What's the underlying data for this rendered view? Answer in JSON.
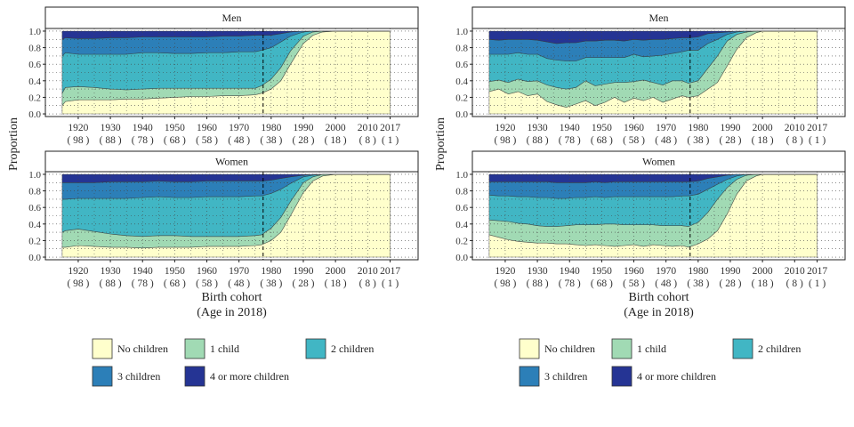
{
  "chart_data": {
    "type": "area",
    "stacked": true,
    "normalized": true,
    "ylabel": "Proportion",
    "xlabel": "Birth cohort",
    "xlabel2": "(Age in 2018)",
    "xlim": [
      1915,
      2017
    ],
    "ylim": [
      0,
      1
    ],
    "y_ticks": [
      "0.0",
      "0.2",
      "0.4",
      "0.6",
      "0.8",
      "1.0"
    ],
    "x_ticks": [
      {
        "year": 1920,
        "label": "1920",
        "age": "( 98 )"
      },
      {
        "year": 1930,
        "label": "1930",
        "age": "( 88 )"
      },
      {
        "year": 1940,
        "label": "1940",
        "age": "( 78 )"
      },
      {
        "year": 1950,
        "label": "1950",
        "age": "( 68 )"
      },
      {
        "year": 1960,
        "label": "1960",
        "age": "( 58 )"
      },
      {
        "year": 1970,
        "label": "1970",
        "age": "( 48 )"
      },
      {
        "year": 1980,
        "label": "1980",
        "age": "( 38 )"
      },
      {
        "year": 1990,
        "label": "1990",
        "age": "( 28 )"
      },
      {
        "year": 2000,
        "label": "2000",
        "age": "( 18 )"
      },
      {
        "year": 2010,
        "label": "2010",
        "age": "( 8 )"
      },
      {
        "year": 2017,
        "label": "2017",
        "age": "( 1 )"
      }
    ],
    "reference_line_year": 1977.5,
    "grid": true,
    "legend": {
      "position": "bottom",
      "entries": [
        {
          "label": "No children",
          "color": "#FFFFCC"
        },
        {
          "label": "1 child",
          "color": "#A1DAB4"
        },
        {
          "label": "2 children",
          "color": "#41B6C4"
        },
        {
          "label": "3 children",
          "color": "#2C7FB8"
        },
        {
          "label": "4 or more children",
          "color": "#253494"
        }
      ]
    },
    "panels": [
      {
        "group": "left",
        "strip": "Men",
        "x": [
          1915,
          1916,
          1920,
          1925,
          1930,
          1935,
          1940,
          1945,
          1950,
          1955,
          1960,
          1965,
          1970,
          1975,
          1977,
          1980,
          1983,
          1986,
          1990,
          1993,
          1996,
          2000,
          2005,
          2010,
          2017
        ],
        "series": [
          {
            "name": "No children",
            "values": [
              0.1,
              0.15,
              0.17,
              0.17,
              0.17,
              0.18,
              0.18,
              0.19,
              0.2,
              0.21,
              0.21,
              0.22,
              0.22,
              0.23,
              0.25,
              0.3,
              0.4,
              0.6,
              0.85,
              0.95,
              0.99,
              1.0,
              1.0,
              1.0,
              1.0
            ]
          },
          {
            "name": "1 child",
            "values": [
              0.15,
              0.17,
              0.16,
              0.15,
              0.13,
              0.11,
              0.12,
              0.12,
              0.11,
              0.1,
              0.1,
              0.09,
              0.09,
              0.08,
              0.09,
              0.12,
              0.16,
              0.16,
              0.09,
              0.04,
              0.01,
              0.0,
              0.0,
              0.0,
              0.0
            ]
          },
          {
            "name": "2 children",
            "values": [
              0.45,
              0.42,
              0.39,
              0.4,
              0.42,
              0.43,
              0.44,
              0.43,
              0.42,
              0.42,
              0.43,
              0.43,
              0.44,
              0.44,
              0.43,
              0.38,
              0.31,
              0.18,
              0.05,
              0.01,
              0.0,
              0.0,
              0.0,
              0.0,
              0.0
            ]
          },
          {
            "name": "3 children",
            "values": [
              0.2,
              0.18,
              0.19,
              0.19,
              0.2,
              0.2,
              0.19,
              0.19,
              0.2,
              0.2,
              0.19,
              0.2,
              0.19,
              0.2,
              0.18,
              0.15,
              0.1,
              0.05,
              0.01,
              0.0,
              0.0,
              0.0,
              0.0,
              0.0,
              0.0
            ]
          },
          {
            "name": "4 or more children",
            "values": [
              0.1,
              0.08,
              0.09,
              0.09,
              0.08,
              0.08,
              0.07,
              0.07,
              0.07,
              0.07,
              0.07,
              0.06,
              0.06,
              0.05,
              0.05,
              0.05,
              0.03,
              0.01,
              0.0,
              0.0,
              0.0,
              0.0,
              0.0,
              0.0,
              0.0
            ]
          }
        ]
      },
      {
        "group": "left",
        "strip": "Women",
        "x": [
          1915,
          1916,
          1920,
          1925,
          1930,
          1935,
          1940,
          1945,
          1950,
          1955,
          1960,
          1965,
          1970,
          1975,
          1977,
          1980,
          1983,
          1986,
          1990,
          1993,
          1996,
          2000,
          2005,
          2010,
          2017
        ],
        "series": [
          {
            "name": "No children",
            "values": [
              0.12,
              0.12,
              0.14,
              0.13,
              0.12,
              0.12,
              0.11,
              0.12,
              0.12,
              0.12,
              0.13,
              0.13,
              0.13,
              0.14,
              0.15,
              0.2,
              0.3,
              0.5,
              0.78,
              0.92,
              0.98,
              1.0,
              1.0,
              1.0,
              1.0
            ]
          },
          {
            "name": "1 child",
            "values": [
              0.18,
              0.2,
              0.2,
              0.18,
              0.16,
              0.14,
              0.14,
              0.14,
              0.14,
              0.13,
              0.12,
              0.12,
              0.12,
              0.12,
              0.12,
              0.15,
              0.18,
              0.17,
              0.12,
              0.05,
              0.02,
              0.0,
              0.0,
              0.0,
              0.0
            ]
          },
          {
            "name": "2 children",
            "values": [
              0.4,
              0.38,
              0.37,
              0.4,
              0.43,
              0.45,
              0.47,
              0.47,
              0.46,
              0.47,
              0.48,
              0.48,
              0.48,
              0.48,
              0.47,
              0.42,
              0.34,
              0.22,
              0.07,
              0.02,
              0.0,
              0.0,
              0.0,
              0.0,
              0.0
            ]
          },
          {
            "name": "3 children",
            "values": [
              0.2,
              0.2,
              0.19,
              0.19,
              0.2,
              0.2,
              0.19,
              0.19,
              0.19,
              0.19,
              0.19,
              0.19,
              0.19,
              0.18,
              0.18,
              0.16,
              0.13,
              0.08,
              0.02,
              0.01,
              0.0,
              0.0,
              0.0,
              0.0,
              0.0
            ]
          },
          {
            "name": "4 or more children",
            "values": [
              0.1,
              0.1,
              0.1,
              0.1,
              0.09,
              0.09,
              0.09,
              0.08,
              0.09,
              0.09,
              0.08,
              0.08,
              0.08,
              0.08,
              0.08,
              0.07,
              0.05,
              0.03,
              0.01,
              0.0,
              0.0,
              0.0,
              0.0,
              0.0,
              0.0
            ]
          }
        ]
      },
      {
        "group": "right",
        "strip": "Men",
        "x": [
          1915,
          1918,
          1921,
          1924,
          1927,
          1930,
          1933,
          1936,
          1939,
          1942,
          1945,
          1948,
          1951,
          1954,
          1957,
          1960,
          1963,
          1966,
          1969,
          1972,
          1975,
          1977,
          1980,
          1983,
          1986,
          1989,
          1992,
          1995,
          1998,
          2000,
          2005,
          2010,
          2017
        ],
        "series": [
          {
            "name": "No children",
            "values": [
              0.27,
              0.3,
              0.24,
              0.27,
              0.22,
              0.24,
              0.15,
              0.11,
              0.08,
              0.12,
              0.16,
              0.1,
              0.14,
              0.2,
              0.14,
              0.19,
              0.16,
              0.2,
              0.14,
              0.18,
              0.22,
              0.2,
              0.22,
              0.3,
              0.38,
              0.58,
              0.78,
              0.92,
              0.98,
              1.0,
              1.0,
              1.0,
              1.0
            ]
          },
          {
            "name": "1 child",
            "values": [
              0.12,
              0.11,
              0.14,
              0.15,
              0.17,
              0.16,
              0.2,
              0.21,
              0.22,
              0.2,
              0.24,
              0.24,
              0.22,
              0.18,
              0.24,
              0.2,
              0.25,
              0.18,
              0.21,
              0.22,
              0.18,
              0.17,
              0.18,
              0.25,
              0.32,
              0.3,
              0.18,
              0.07,
              0.02,
              0.0,
              0.0,
              0.0,
              0.0
            ]
          },
          {
            "name": "2 children",
            "values": [
              0.33,
              0.31,
              0.34,
              0.32,
              0.33,
              0.32,
              0.32,
              0.33,
              0.34,
              0.32,
              0.28,
              0.34,
              0.32,
              0.3,
              0.3,
              0.33,
              0.28,
              0.32,
              0.36,
              0.33,
              0.35,
              0.4,
              0.37,
              0.3,
              0.2,
              0.08,
              0.03,
              0.01,
              0.0,
              0.0,
              0.0,
              0.0,
              0.0
            ]
          },
          {
            "name": "3 children",
            "values": [
              0.18,
              0.17,
              0.18,
              0.16,
              0.18,
              0.17,
              0.2,
              0.2,
              0.22,
              0.22,
              0.2,
              0.2,
              0.21,
              0.21,
              0.2,
              0.18,
              0.2,
              0.2,
              0.19,
              0.18,
              0.17,
              0.15,
              0.16,
              0.12,
              0.08,
              0.03,
              0.01,
              0.0,
              0.0,
              0.0,
              0.0,
              0.0,
              0.0
            ]
          },
          {
            "name": "4 or more children",
            "values": [
              0.1,
              0.11,
              0.1,
              0.1,
              0.1,
              0.11,
              0.13,
              0.15,
              0.14,
              0.14,
              0.12,
              0.12,
              0.11,
              0.11,
              0.12,
              0.1,
              0.11,
              0.1,
              0.1,
              0.09,
              0.08,
              0.08,
              0.07,
              0.03,
              0.02,
              0.01,
              0.0,
              0.0,
              0.0,
              0.0,
              0.0,
              0.0,
              0.0
            ]
          }
        ]
      },
      {
        "group": "right",
        "strip": "Women",
        "x": [
          1915,
          1918,
          1921,
          1924,
          1927,
          1930,
          1933,
          1936,
          1939,
          1942,
          1945,
          1948,
          1951,
          1954,
          1957,
          1960,
          1963,
          1966,
          1969,
          1972,
          1975,
          1977,
          1980,
          1983,
          1986,
          1989,
          1992,
          1995,
          1998,
          2000,
          2005,
          2010,
          2017
        ],
        "series": [
          {
            "name": "No children",
            "values": [
              0.27,
              0.24,
              0.21,
              0.19,
              0.18,
              0.17,
              0.17,
              0.16,
              0.16,
              0.15,
              0.14,
              0.15,
              0.14,
              0.13,
              0.14,
              0.15,
              0.13,
              0.15,
              0.14,
              0.13,
              0.14,
              0.12,
              0.16,
              0.22,
              0.32,
              0.52,
              0.76,
              0.92,
              0.98,
              1.0,
              1.0,
              1.0,
              1.0
            ]
          },
          {
            "name": "1 child",
            "values": [
              0.18,
              0.2,
              0.22,
              0.22,
              0.22,
              0.21,
              0.2,
              0.21,
              0.22,
              0.24,
              0.25,
              0.24,
              0.26,
              0.27,
              0.25,
              0.24,
              0.26,
              0.24,
              0.24,
              0.25,
              0.24,
              0.25,
              0.26,
              0.32,
              0.38,
              0.32,
              0.18,
              0.07,
              0.02,
              0.0,
              0.0,
              0.0,
              0.0
            ]
          },
          {
            "name": "2 children",
            "values": [
              0.3,
              0.3,
              0.31,
              0.32,
              0.33,
              0.34,
              0.35,
              0.34,
              0.33,
              0.33,
              0.33,
              0.34,
              0.32,
              0.33,
              0.34,
              0.34,
              0.34,
              0.34,
              0.35,
              0.35,
              0.36,
              0.37,
              0.34,
              0.28,
              0.18,
              0.1,
              0.04,
              0.01,
              0.0,
              0.0,
              0.0,
              0.0,
              0.0
            ]
          },
          {
            "name": "3 children",
            "values": [
              0.16,
              0.17,
              0.17,
              0.18,
              0.18,
              0.19,
              0.19,
              0.19,
              0.19,
              0.18,
              0.18,
              0.18,
              0.18,
              0.18,
              0.18,
              0.18,
              0.18,
              0.18,
              0.18,
              0.18,
              0.17,
              0.17,
              0.16,
              0.13,
              0.09,
              0.05,
              0.02,
              0.0,
              0.0,
              0.0,
              0.0,
              0.0,
              0.0
            ]
          },
          {
            "name": "4 or more children",
            "values": [
              0.09,
              0.09,
              0.09,
              0.09,
              0.09,
              0.09,
              0.09,
              0.1,
              0.1,
              0.1,
              0.1,
              0.09,
              0.1,
              0.09,
              0.09,
              0.09,
              0.09,
              0.09,
              0.09,
              0.09,
              0.09,
              0.09,
              0.08,
              0.05,
              0.03,
              0.01,
              0.0,
              0.0,
              0.0,
              0.0,
              0.0,
              0.0,
              0.0
            ]
          }
        ]
      }
    ]
  }
}
